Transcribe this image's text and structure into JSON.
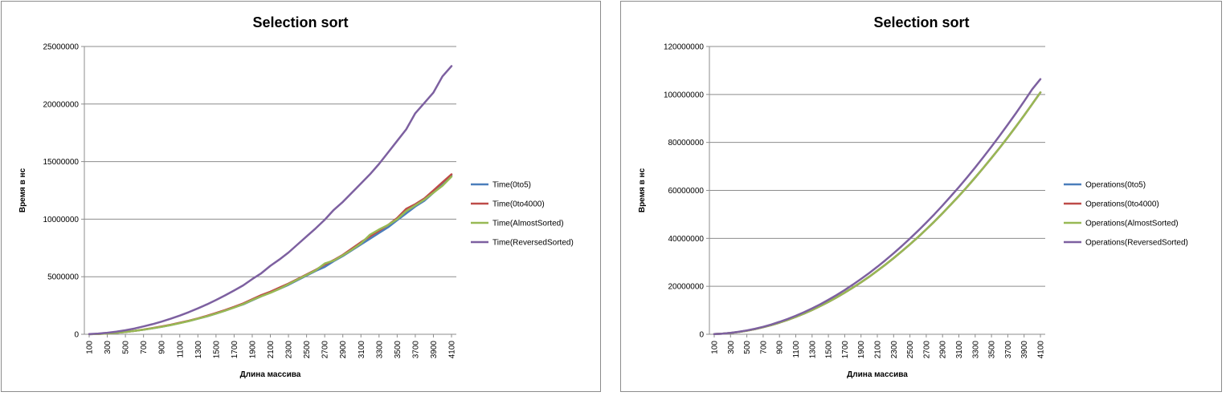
{
  "chart_data": [
    {
      "type": "line",
      "title": "Selection sort",
      "xlabel": "Длина массива",
      "ylabel": "Время в нс",
      "ylim": [
        0,
        25000000
      ],
      "ytick_labels": [
        "0",
        "5000000",
        "10000000",
        "15000000",
        "20000000",
        "25000000"
      ],
      "x": [
        100,
        200,
        300,
        400,
        500,
        600,
        700,
        800,
        900,
        1000,
        1100,
        1200,
        1300,
        1400,
        1500,
        1600,
        1700,
        1800,
        1900,
        2000,
        2100,
        2200,
        2300,
        2400,
        2500,
        2600,
        2700,
        2800,
        2900,
        3000,
        3100,
        3200,
        3300,
        3400,
        3500,
        3600,
        3700,
        3800,
        3900,
        4000,
        4100
      ],
      "xtick_labels": [
        "100",
        "300",
        "500",
        "700",
        "900",
        "1100",
        "1300",
        "1500",
        "1700",
        "1900",
        "2100",
        "2300",
        "2500",
        "2700",
        "2900",
        "3100",
        "3300",
        "3500",
        "3700",
        "3900",
        "4100"
      ],
      "grid": true,
      "legend_position": "right",
      "series": [
        {
          "name": "Time(0to5)",
          "color": "#4a7ebb",
          "values": [
            10000,
            30000,
            70000,
            130000,
            200000,
            290000,
            400000,
            520000,
            650000,
            800000,
            980000,
            1150000,
            1350000,
            1550000,
            1800000,
            2050000,
            2330000,
            2600000,
            2950000,
            3300000,
            3620000,
            3950000,
            4300000,
            4700000,
            5100000,
            5500000,
            5850000,
            6350000,
            6800000,
            7300000,
            7800000,
            8300000,
            8800000,
            9300000,
            9900000,
            10500000,
            11100000,
            11600000,
            12300000,
            13000000,
            13800000
          ]
        },
        {
          "name": "Time(0to4000)",
          "color": "#be4b48",
          "values": [
            10000,
            30000,
            70000,
            130000,
            200000,
            300000,
            410000,
            540000,
            680000,
            830000,
            1000000,
            1180000,
            1380000,
            1600000,
            1850000,
            2100000,
            2380000,
            2680000,
            3050000,
            3400000,
            3700000,
            4050000,
            4400000,
            4800000,
            5200000,
            5600000,
            6050000,
            6450000,
            6900000,
            7450000,
            8000000,
            8500000,
            9000000,
            9500000,
            10100000,
            10900000,
            11300000,
            11800000,
            12500000,
            13200000,
            13900000
          ]
        },
        {
          "name": "Time(AlmostSorted)",
          "color": "#98b954",
          "values": [
            10000,
            30000,
            70000,
            130000,
            200000,
            290000,
            400000,
            520000,
            650000,
            800000,
            970000,
            1150000,
            1350000,
            1560000,
            1800000,
            2050000,
            2320000,
            2620000,
            2980000,
            3300000,
            3600000,
            3950000,
            4350000,
            4750000,
            5150000,
            5550000,
            6150000,
            6400000,
            6850000,
            7350000,
            7900000,
            8650000,
            9100000,
            9500000,
            10000000,
            10700000,
            11200000,
            11700000,
            12300000,
            12900000,
            13700000
          ]
        },
        {
          "name": "Time(ReversedSorted)",
          "color": "#7d60a0",
          "values": [
            20000,
            60000,
            130000,
            230000,
            350000,
            500000,
            680000,
            880000,
            1100000,
            1350000,
            1620000,
            1920000,
            2250000,
            2600000,
            2980000,
            3380000,
            3800000,
            4250000,
            4800000,
            5300000,
            5950000,
            6500000,
            7100000,
            7800000,
            8500000,
            9200000,
            9950000,
            10800000,
            11500000,
            12300000,
            13100000,
            13900000,
            14800000,
            15800000,
            16800000,
            17800000,
            19200000,
            20100000,
            21000000,
            22400000,
            23300000
          ]
        }
      ]
    },
    {
      "type": "line",
      "title": "Selection sort",
      "xlabel": "Длина массива",
      "ylabel": "Время в нс",
      "ylim": [
        0,
        120000000
      ],
      "ytick_labels": [
        "0",
        "20000000",
        "40000000",
        "60000000",
        "80000000",
        "100000000",
        "120000000"
      ],
      "x": [
        100,
        200,
        300,
        400,
        500,
        600,
        700,
        800,
        900,
        1000,
        1100,
        1200,
        1300,
        1400,
        1500,
        1600,
        1700,
        1800,
        1900,
        2000,
        2100,
        2200,
        2300,
        2400,
        2500,
        2600,
        2700,
        2800,
        2900,
        3000,
        3100,
        3200,
        3300,
        3400,
        3500,
        3600,
        3700,
        3800,
        3900,
        4000,
        4100
      ],
      "xtick_labels": [
        "100",
        "300",
        "500",
        "700",
        "900",
        "1100",
        "1300",
        "1500",
        "1700",
        "1900",
        "2100",
        "2300",
        "2500",
        "2700",
        "2900",
        "3100",
        "3300",
        "3500",
        "3700",
        "3900",
        "4100"
      ],
      "grid": true,
      "legend_position": "right",
      "series": [
        {
          "name": "Operations(0to5)",
          "color": "#4a7ebb",
          "values": [
            60000,
            240000,
            540000,
            960000,
            1500000,
            2160000,
            2940000,
            3840000,
            4860000,
            6000000,
            7260000,
            8640000,
            10140000,
            11760000,
            13500000,
            15360000,
            17340000,
            19440000,
            21660000,
            24000000,
            26460000,
            29040000,
            31740000,
            34560000,
            37500000,
            40560000,
            43740000,
            47040000,
            50460000,
            54000000,
            57660000,
            61440000,
            65340000,
            69360000,
            73500000,
            77760000,
            82140000,
            86640000,
            91260000,
            96000000,
            100860000
          ]
        },
        {
          "name": "Operations(0to4000)",
          "color": "#be4b48",
          "values": [
            60000,
            240000,
            540000,
            960000,
            1500000,
            2160000,
            2940000,
            3840000,
            4860000,
            6000000,
            7260000,
            8640000,
            10140000,
            11760000,
            13500000,
            15360000,
            17340000,
            19440000,
            21660000,
            24000000,
            26460000,
            29040000,
            31740000,
            34560000,
            37500000,
            40560000,
            43740000,
            47040000,
            50460000,
            54000000,
            57660000,
            61440000,
            65340000,
            69360000,
            73500000,
            77760000,
            82140000,
            86640000,
            91260000,
            96000000,
            100860000
          ]
        },
        {
          "name": "Operations(AlmostSorted)",
          "color": "#98b954",
          "values": [
            60000,
            240000,
            540000,
            960000,
            1500000,
            2160000,
            2940000,
            3840000,
            4860000,
            6000000,
            7260000,
            8640000,
            10140000,
            11760000,
            13500000,
            15360000,
            17340000,
            19440000,
            21660000,
            24000000,
            26460000,
            29040000,
            31740000,
            34560000,
            37500000,
            40560000,
            43740000,
            47040000,
            50460000,
            54000000,
            57660000,
            61440000,
            65340000,
            69360000,
            73500000,
            77760000,
            82140000,
            86640000,
            91260000,
            96000000,
            100860000
          ]
        },
        {
          "name": "Operations(ReversedSorted)",
          "color": "#7d60a0",
          "values": [
            70000,
            260000,
            580000,
            1030000,
            1600000,
            2300000,
            3120000,
            4080000,
            5170000,
            6380000,
            7720000,
            9190000,
            10790000,
            12510000,
            14360000,
            16340000,
            18450000,
            20690000,
            23050000,
            25540000,
            28160000,
            30900000,
            33780000,
            36780000,
            39910000,
            43170000,
            46550000,
            50070000,
            53710000,
            57480000,
            61380000,
            65400000,
            69560000,
            73830000,
            78240000,
            82780000,
            87440000,
            92230000,
            97150000,
            102200000,
            106400000
          ]
        }
      ]
    }
  ]
}
